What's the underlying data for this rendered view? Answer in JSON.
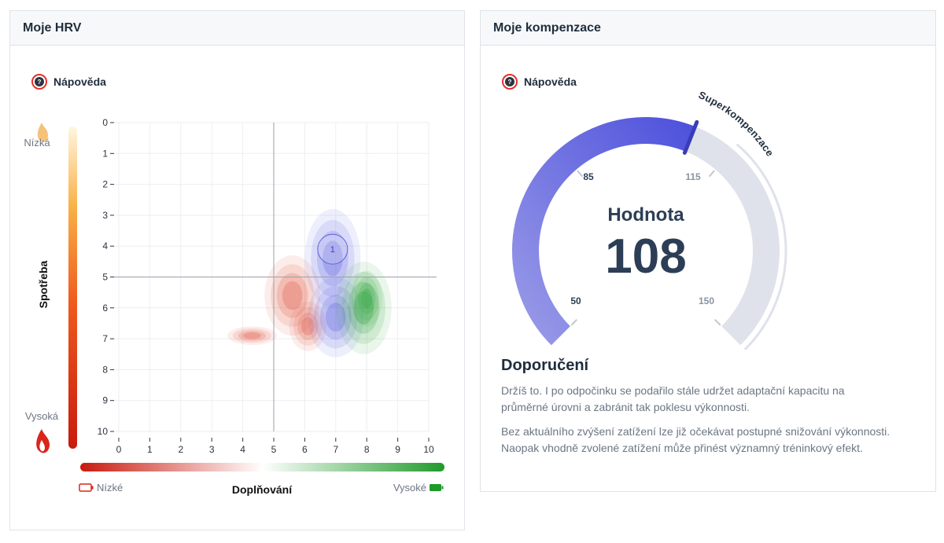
{
  "hrv": {
    "title": "Moje HRV",
    "help_label": "Nápověda",
    "y_label": "Spotřeba",
    "y_low": "Nízká",
    "y_high": "Vysoká",
    "x_label": "Doplňování",
    "x_low": "Nízké",
    "x_high": "Vysoké",
    "marker_label": "1"
  },
  "chart_data": {
    "type": "heatmap",
    "xlabel": "Doplňování",
    "ylabel": "Spotřeba",
    "xlim": [
      0,
      10
    ],
    "ylim": [
      0,
      10
    ],
    "y_inverted": true,
    "x_ticks": [
      "0",
      "1",
      "2",
      "3",
      "4",
      "5",
      "6",
      "7",
      "8",
      "9",
      "10"
    ],
    "y_ticks": [
      "0",
      "1",
      "2",
      "3",
      "4",
      "5",
      "6",
      "7",
      "8",
      "9",
      "10"
    ],
    "crosshair": {
      "x": 5,
      "y": 5
    },
    "grid": true,
    "colors": {
      "red": "#e0523c",
      "blue": "#5b5ee0",
      "green": "#2ea23c"
    },
    "marker": {
      "label": "1",
      "x": 6.9,
      "y": 4.1
    },
    "series": [
      {
        "color_key": "red",
        "blobs": [
          {
            "cx": 5.6,
            "cy": 5.6,
            "rx": 0.9,
            "ry": 1.3
          },
          {
            "cx": 6.1,
            "cy": 6.6,
            "rx": 0.6,
            "ry": 0.8
          },
          {
            "cx": 4.3,
            "cy": 6.9,
            "rx": 0.8,
            "ry": 0.3
          }
        ]
      },
      {
        "color_key": "blue",
        "blobs": [
          {
            "cx": 6.9,
            "cy": 4.4,
            "rx": 0.9,
            "ry": 1.6
          },
          {
            "cx": 7.0,
            "cy": 6.3,
            "rx": 0.9,
            "ry": 1.3
          }
        ]
      },
      {
        "color_key": "green",
        "blobs": [
          {
            "cx": 7.9,
            "cy": 6.0,
            "rx": 0.9,
            "ry": 1.5
          },
          {
            "cx": 8.0,
            "cy": 5.7,
            "rx": 0.5,
            "ry": 0.9
          }
        ]
      }
    ]
  },
  "komp": {
    "title": "Moje kompenzace",
    "help_label": "Nápověda",
    "gauge_min": 50,
    "gauge_max": 150,
    "value": 108,
    "value_label": "Hodnota",
    "value_text": "108",
    "zone_label": "Superkompenzace",
    "tick_labels": {
      "t50": "50",
      "t85": "85",
      "t115": "115",
      "t150": "150"
    },
    "recommendation_title": "Doporučení",
    "recommendation_p1": "Držíš to. I po odpočinku se podařilo stále udržet adaptační kapacitu na průměrné úrovni a zabránit tak poklesu výkonnosti.",
    "recommendation_p2": "Bez aktuálního zvýšení zatížení lze již očekávat postupné snižování výkonnosti. Naopak vhodně zvolené zatížení může přinést významný tréninkový efekt."
  }
}
